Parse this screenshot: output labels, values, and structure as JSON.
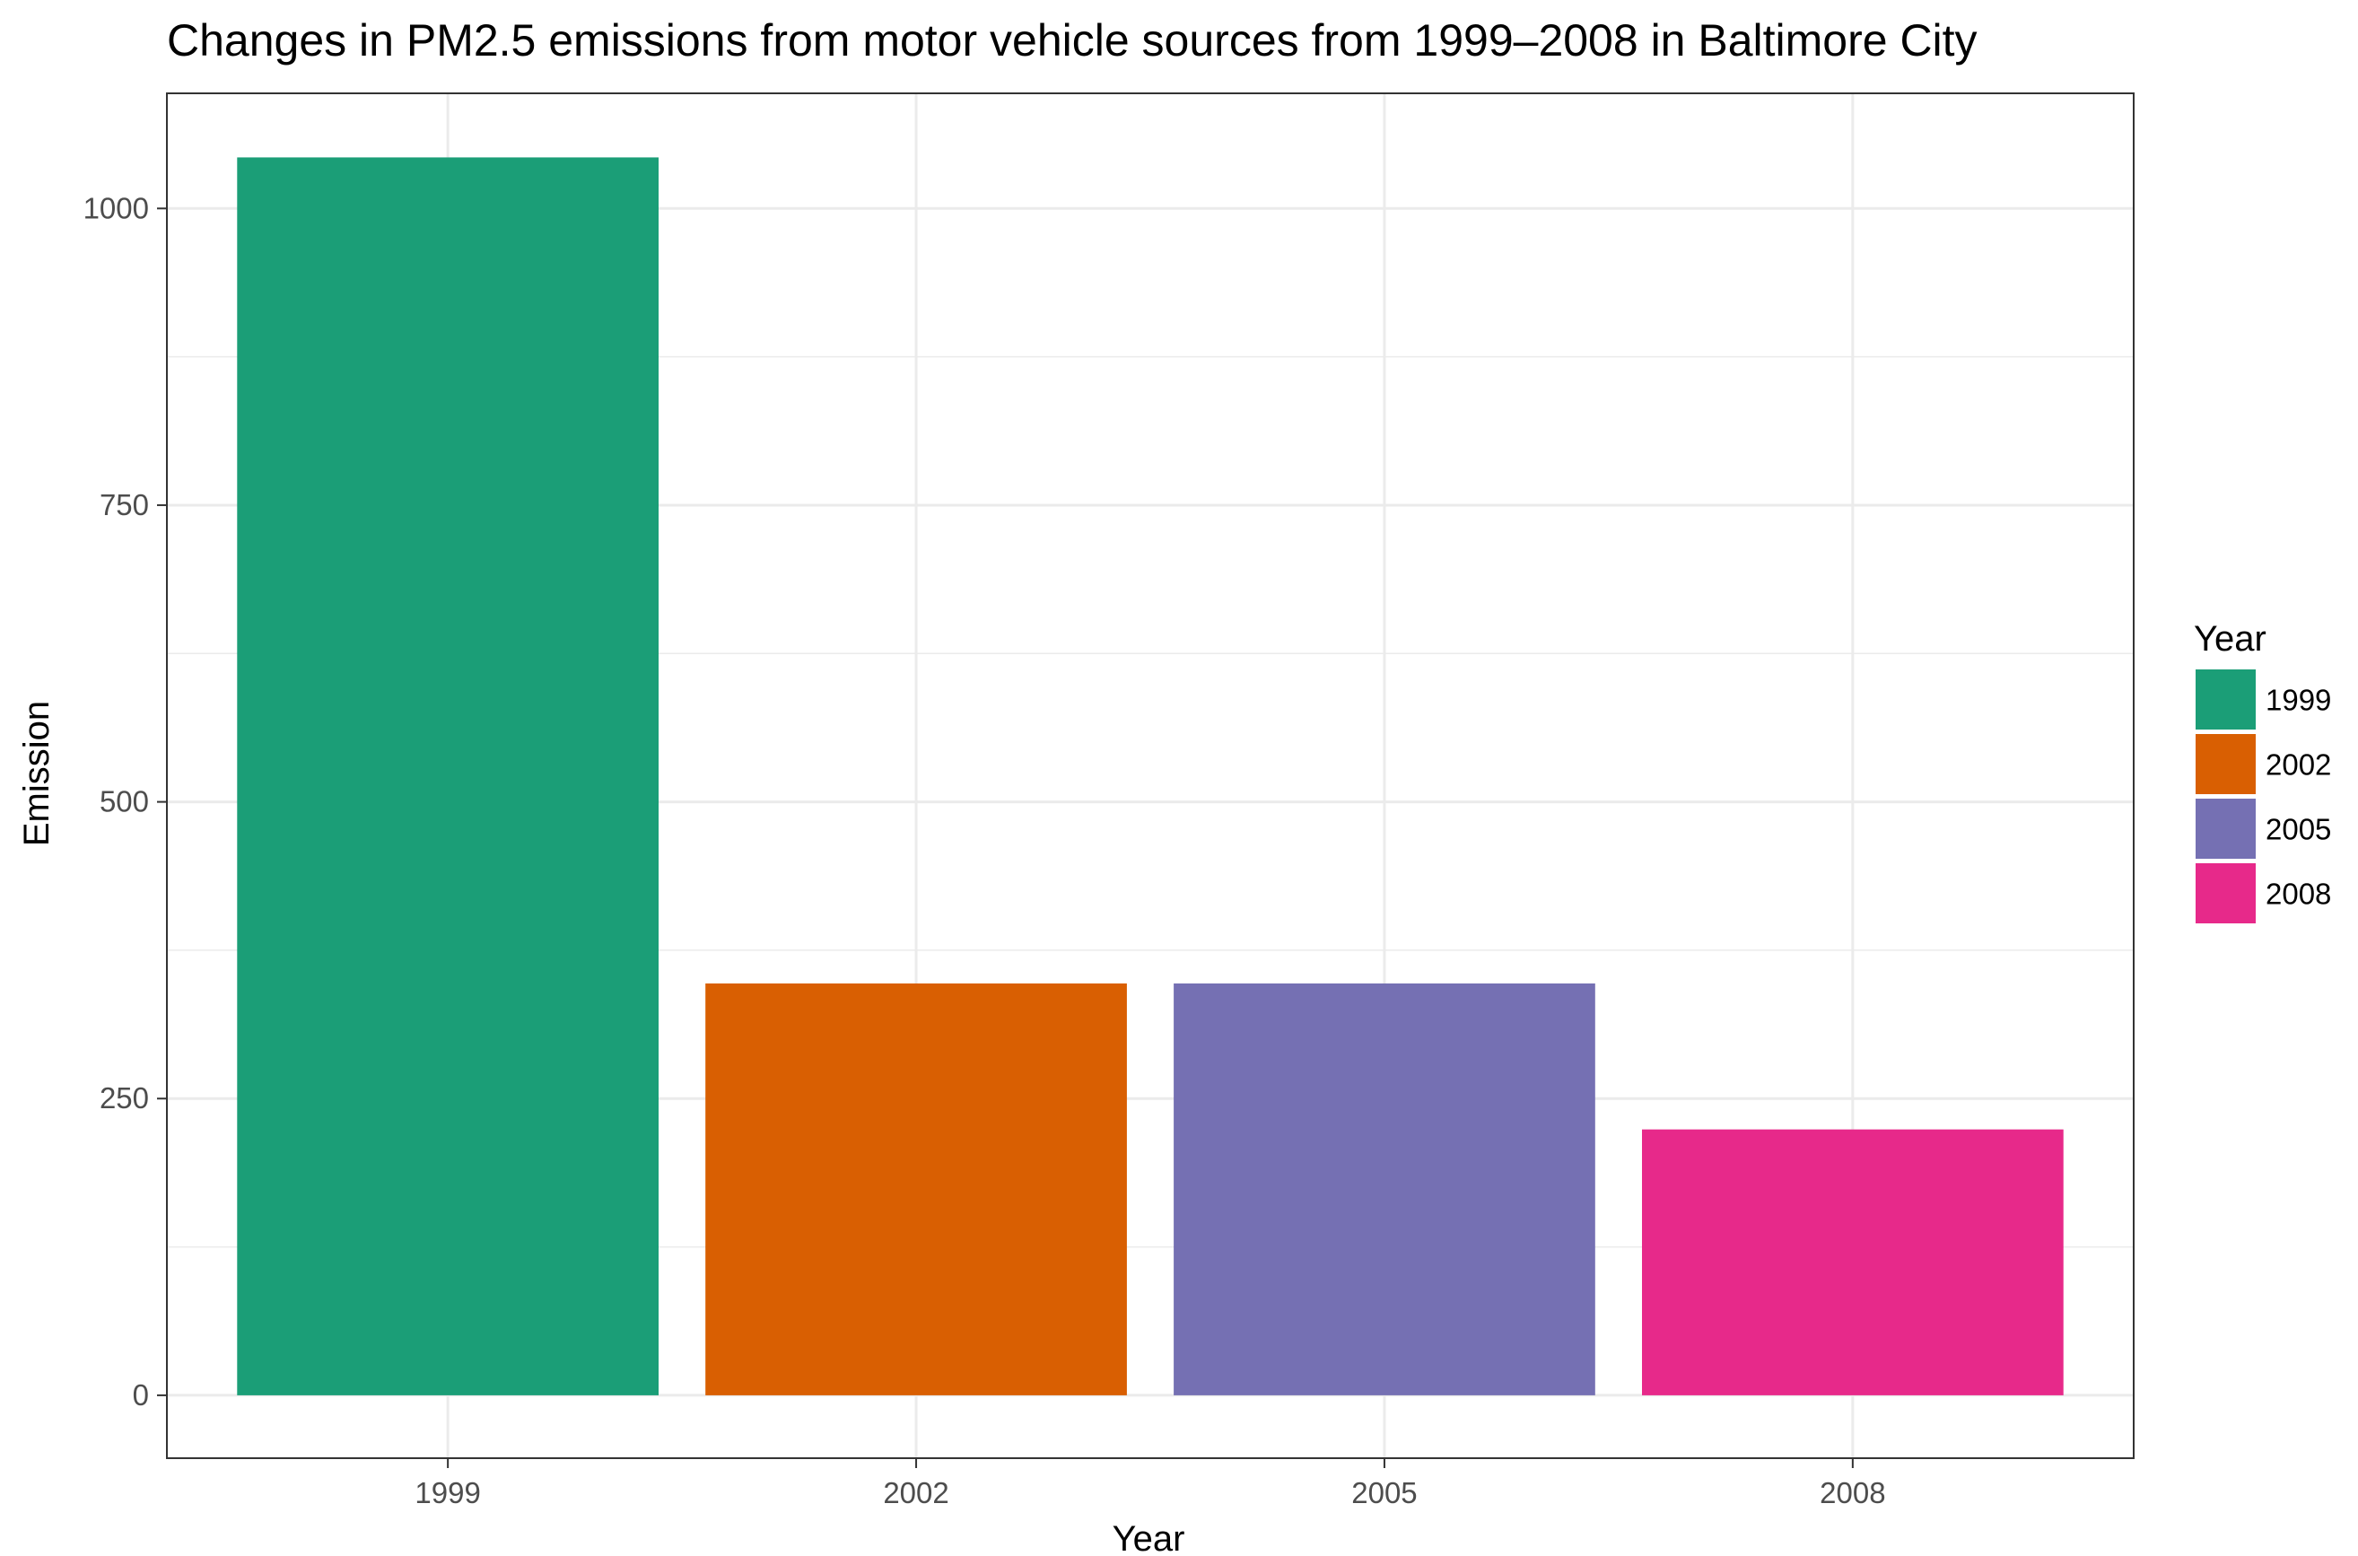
{
  "chart_data": {
    "type": "bar",
    "title": "Changes in PM2.5 emissions from motor vehicle sources from 1999–2008 in Baltimore City",
    "xlabel": "Year",
    "ylabel": "Emission",
    "categories": [
      "1999",
      "2002",
      "2005",
      "2008"
    ],
    "values": [
      1043,
      347,
      347,
      224
    ],
    "colors": [
      "#1b9e77",
      "#d95f02",
      "#7570b3",
      "#e7298a"
    ],
    "ylim": [
      -53,
      1097
    ],
    "yticks": [
      0,
      250,
      500,
      750,
      1000
    ],
    "grid": true,
    "legend": {
      "title": "Year",
      "position": "right",
      "entries": [
        "1999",
        "2002",
        "2005",
        "2008"
      ]
    }
  }
}
